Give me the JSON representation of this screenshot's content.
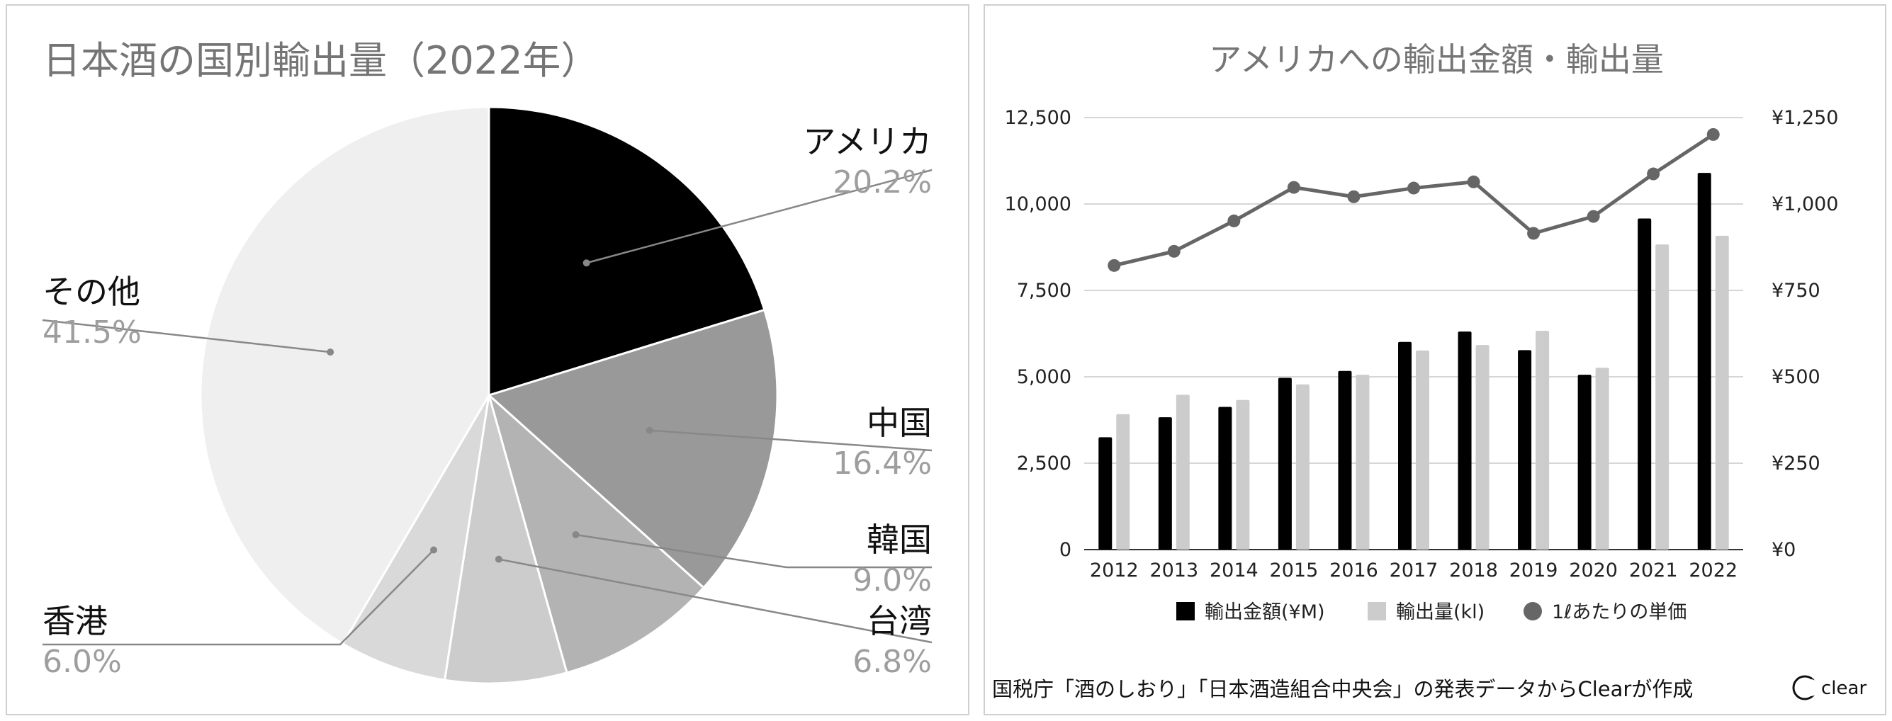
{
  "pie": {
    "chart_data": {
      "type": "pie",
      "title": "日本酒の国別輸出量（2022年）",
      "slices": [
        {
          "label": "アメリカ",
          "percent_label": "20.2%",
          "value": 20.2,
          "color": "#000000"
        },
        {
          "label": "中国",
          "percent_label": "16.4%",
          "value": 16.4,
          "color": "#999999"
        },
        {
          "label": "韓国",
          "percent_label": "9.0%",
          "value": 9.0,
          "color": "#b3b3b3"
        },
        {
          "label": "台湾",
          "percent_label": "6.8%",
          "value": 6.8,
          "color": "#cccccc"
        },
        {
          "label": "香港",
          "percent_label": "6.0%",
          "value": 6.0,
          "color": "#d9d9d9"
        },
        {
          "label": "その他",
          "percent_label": "41.5%",
          "value": 41.5,
          "color": "#efefef"
        }
      ]
    }
  },
  "combo": {
    "chart_data": {
      "type": "bar",
      "title": "アメリカへの輸出金額・輸出量",
      "categories": [
        "2012",
        "2013",
        "2014",
        "2015",
        "2016",
        "2017",
        "2018",
        "2019",
        "2020",
        "2021",
        "2022"
      ],
      "series": [
        {
          "name": "輸出金額(¥M)",
          "kind": "bar",
          "axis": "left",
          "color": "#000000",
          "values": [
            3250,
            3830,
            4130,
            4970,
            5170,
            6010,
            6310,
            5770,
            5060,
            9580,
            10900
          ]
        },
        {
          "name": "輸出量(kl)",
          "kind": "bar",
          "axis": "left",
          "color": "#cccccc",
          "values": [
            3920,
            4480,
            4330,
            4780,
            5060,
            5760,
            5920,
            6330,
            5260,
            8830,
            9080
          ]
        },
        {
          "name": "1ℓあたりの単価",
          "kind": "line",
          "axis": "right",
          "color": "#666666",
          "values": [
            822,
            863,
            951,
            1048,
            1021,
            1046,
            1064,
            915,
            964,
            1087,
            1201
          ]
        }
      ],
      "ylim_left": [
        0,
        12500
      ],
      "ylim_right": [
        0,
        1250
      ],
      "yticks_left": [
        "0",
        "2,500",
        "5,000",
        "7,500",
        "10,000",
        "12,500"
      ],
      "yticks_right": [
        "¥0",
        "¥250",
        "¥500",
        "¥750",
        "¥1,000",
        "¥1,250"
      ],
      "grid": true,
      "legend_position": "bottom"
    },
    "source_note": "国税庁「酒のしおり」「日本酒造組合中央会」の発表データからClearが作成",
    "brand": "clear"
  }
}
